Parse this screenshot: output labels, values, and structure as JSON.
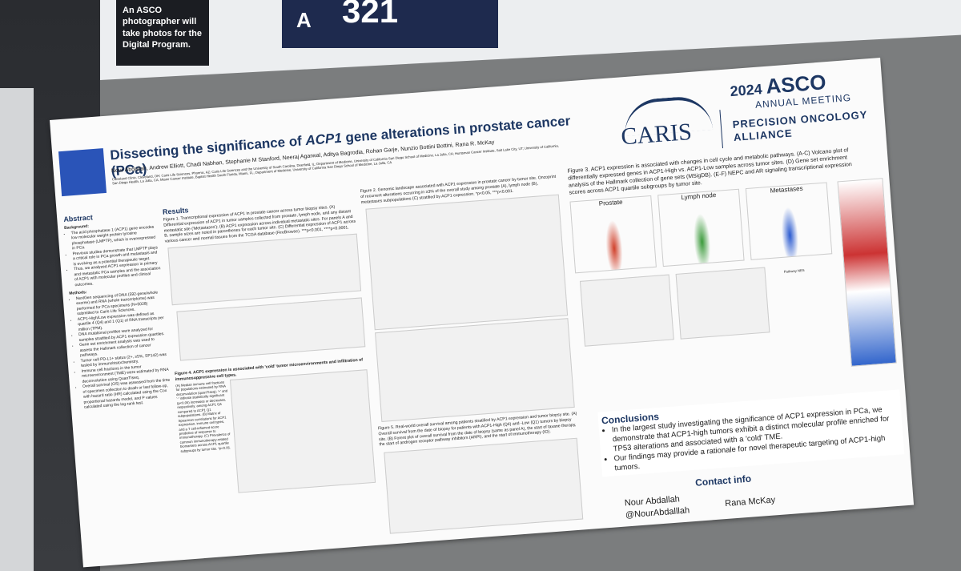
{
  "sign": {
    "text": "An ASCO photographer will take photos for the Digital Program."
  },
  "board": {
    "letter": "A",
    "number": "321"
  },
  "header": {
    "title_pre": "Dissecting the significance of ",
    "title_gene": "ACP1",
    "title_post": " gene alterations in prostate cancer (PCa)",
    "authors": "Nour Abdallah, Andrew Elliott, Chadi Nabhan, Stephanie M Stanford, Neeraj Agarwal, Aditya Bagrodia, Rohan Garje, Nunzio Bottini Bottini, Rana R. McKay",
    "affiliations": "Cleveland Clinic, Cleveland, OH; Caris Life Sciences, Phoenix, AZ; Caris Life Sciences and the University of South Carolina, Deerfield, IL; Department of Medicine, University of California San Diego School of Medicine, La Jolla, CA; Huntsman Cancer Institute, Salt Lake City, UT; University of California, San Diego Health, La Jolla, CA; Miami Cancer Institute, Baptist Health South Florida, Miami, FL; Department of Medicine, University of California San Diego School of Medicine, La Jolla, CA"
  },
  "logos": {
    "caris": "CARIS",
    "asco_year": "2024",
    "asco": "ASCO",
    "asco_sub": "ANNUAL MEETING",
    "alliance_1": "PRECISION ONCOLOGY",
    "alliance_2": "ALLIANCE"
  },
  "abstract": {
    "heading": "Abstract",
    "background_heading": "Background:",
    "background": [
      "The acid phosphatase 1 (ACP1) gene encodes low molecular weight protein tyrosine phosphatase (LMPTP), which is overexpressed in PCa.",
      "Previous studies demonstrate that LMPTP plays a critical role in PCa growth and metastasis and is evolving as a potential therapeutic target.",
      "Thus, we analyzed ACP1 expression in primary and metastatic PCa samples and the association of ACP1 with molecular profiles and clinical outcomes."
    ],
    "methods_heading": "Methods:",
    "methods": [
      "NextGen sequencing of DNA (592-gene/whole exome) and RNA (whole transcriptome) was performed for PCa specimens (N=5028) submitted to Caris Life Sciences.",
      "ACP1-High/Low expression was defined as quartile 4 (Q4) and 1 (Q1) of RNA transcripts per million (TPM).",
      "DNA mutational profiles were analyzed for samples stratified by ACP1 expression quartiles.",
      "Gene set enrichment analysis was used to assess the Hallmark collection of cancer pathways.",
      "Tumor cell PD-L1+ status (2+, ≥5%, SP142) was tested by immunohistochemistry.",
      "Immune cell fractions in the tumor microenvironment (TME) were estimated by RNA deconvolution using QuanTIseq.",
      "Overall survival (OS) was assessed from the time of specimen collection to death or last follow-up, with hazard ratio (HR) calculated using the Cox proportional hazards model, and P values calculated using the log-rank test."
    ]
  },
  "results": {
    "heading": "Results",
    "fig1": "Figure 1. Transcriptional expression of ACP1 in prostate cancer across tumor biopsy sites. (A) Differential expression of ACP1 in tumor samples collected from prostate, lymph node, and any distant metastatic site ('Metastases'); (B) ACP1 expression across individual metastatic sites. For panels A and B, sample sizes are noted in parentheses for each tumor site. (C) Differential expression of ACP1 across various cancer and normal tissues from the TCGA database (FireBrowse). ***p<0.001, ****p<0.0001.",
    "fig4": "Figure 4. ACP1 expression is associated with 'cold' tumor microenvironments and infiltration of immunosuppressive cell types.",
    "fig4_body": "(A) Median immune cell fractions for populations estimated by RNA deconvolution (quanTIseq); '+' and '-' indicate statistically significant (p<0.05) increases or decreases, respectively, among ACP1 Q4 compared to ACP1 Q1 subpopulations. (B) Matrix of Spearman correlations for ACP1 expression, immune cell types, and a T cell-inflamed score predictive of response to immunotherapy. (C) Prevalence of common immunotherapy-related biomarkers across ACP1 quartile subgroups by tumor site. *p<0.05."
  },
  "fig2": {
    "caption": "Figure 2. Genomic landscape associated with ACP1 expression in prostate cancer by tumor site. Oncoprint of recurrent alterations occurring in ≥3% of the overall study among prostate (A), lymph node (B), metastases subpopulations (C) stratified by ACP1 expression. *p<0.05, ***p<0.001."
  },
  "fig3": {
    "caption": "Figure 3. ACP1 expression is associated with changes in cell cycle and metabolic pathways. (A-C) Volcano plot of differentially expressed genes in ACP1-High vs. ACP1-Low samples across tumor sites. (D) Gene set enrichment analysis of the Hallmark collection of gene sets (MSigDB). (E-F) NEPC and AR signaling transcriptional expression scores across ACP1 quartile subgroups by tumor site.",
    "panels": [
      "Prostate",
      "Lymph node",
      "Metastases"
    ],
    "pathway": "Pathway NES"
  },
  "fig5": {
    "caption": "Figure 5. Real-world overall survival among patients stratified by ACP1 expression and tumor biopsy site. (A) Overall survival from the date of biopsy for patients with ACP1-High (Q4) and -Low (Q1) tumors by biopsy site. (B) Forest plot of overall survival from the date of biopsy (same as panel A), the start of taxane therapy, the start of androgen receptor pathway inhibitors (ARPI), and the start of immunotherapy (IO)."
  },
  "conclusions": {
    "heading": "Conclusions",
    "items": [
      "In the largest study investigating the significance of ACP1 expression in PCa, we demonstrate that ACP1-high tumors exhibit a distinct molecular profile enriched for TP53 alterations and associated with a 'cold' TME.",
      "Our findings may provide a rationale for novel therapeutic targeting of ACP1-high tumors."
    ]
  },
  "contact": {
    "heading": "Contact info",
    "name_1": "Nour Abdallah",
    "handle_1": "@NourAbdalllah",
    "name_2": "Rana McKay"
  }
}
